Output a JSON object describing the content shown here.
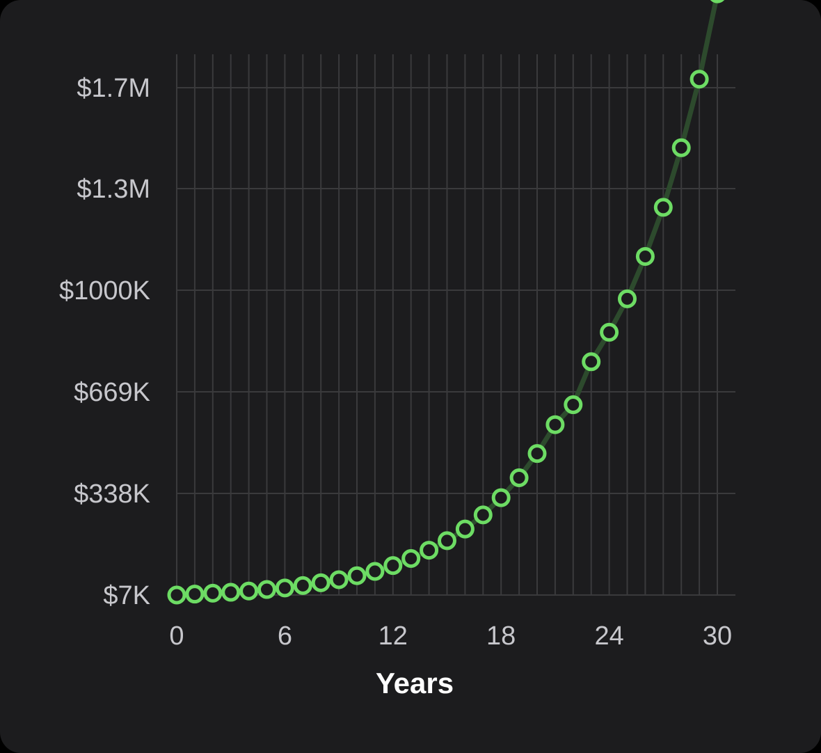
{
  "chart_data": {
    "type": "line",
    "xlabel": "Years",
    "ylabel": "",
    "xlim": [
      0,
      30
    ],
    "ylim": [
      7,
      1700
    ],
    "x_ticks": [
      0,
      6,
      12,
      18,
      24,
      30
    ],
    "x_tick_labels": [
      "0",
      "6",
      "12",
      "18",
      "24",
      "30"
    ],
    "y_ticks": [
      7,
      338,
      669,
      1000,
      1331,
      1662
    ],
    "y_tick_labels": [
      "$7K",
      "$338K",
      "$669K",
      "$1000K",
      "$1.3M",
      "$1.7M"
    ],
    "grid": true,
    "series": [
      {
        "color": "#6ddc64",
        "x": [
          0,
          1,
          2,
          3,
          4,
          5,
          6,
          7,
          8,
          9,
          10,
          11,
          12,
          13,
          14,
          15,
          16,
          17,
          18,
          19,
          20,
          21,
          22,
          23,
          24,
          25,
          26,
          27,
          28,
          29,
          30
        ],
        "values": [
          7,
          10,
          13,
          16,
          20,
          25,
          30,
          38,
          47,
          57,
          70,
          84,
          103,
          126,
          153,
          184,
          222,
          268,
          324,
          389,
          468,
          562,
          627,
          767,
          863,
          972,
          1110,
          1270,
          1465,
          1690,
          1970
        ]
      }
    ]
  },
  "colors": {
    "background": "#1c1c1e",
    "grid": "#3a3a3c",
    "line": "#2d4a2d",
    "marker": "#6ddc64"
  }
}
